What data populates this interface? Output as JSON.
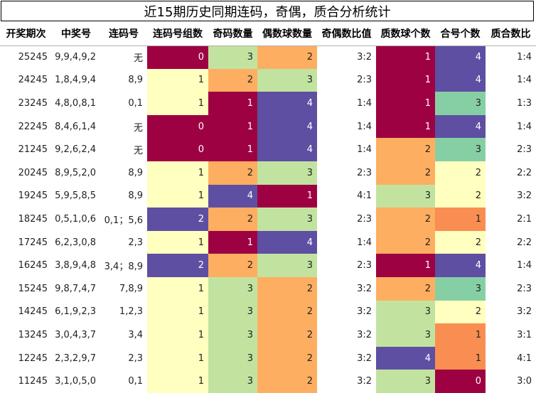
{
  "title": "近15期历史同期连码，奇偶，质合分析统计",
  "headers": [
    "开奖期次",
    "中奖号",
    "连码号",
    "连码号组数",
    "奇码数量",
    "偶数球数量",
    "奇偶数比值",
    "质数球个数",
    "合号个数",
    "质合数比"
  ],
  "rows": [
    {
      "period": "25245",
      "numbers": "9,9,4,9,2",
      "consec": "无",
      "groups": "0",
      "odd": "3",
      "even": "2",
      "oe_ratio": "3:2",
      "prime": "1",
      "composite": "4",
      "pc_ratio": "1:4"
    },
    {
      "period": "24245",
      "numbers": "1,8,4,9,4",
      "consec": "8,9",
      "groups": "1",
      "odd": "2",
      "even": "3",
      "oe_ratio": "2:3",
      "prime": "1",
      "composite": "4",
      "pc_ratio": "1:4"
    },
    {
      "period": "23245",
      "numbers": "4,8,0,8,1",
      "consec": "0,1",
      "groups": "1",
      "odd": "1",
      "even": "4",
      "oe_ratio": "1:4",
      "prime": "1",
      "composite": "3",
      "pc_ratio": "1:3"
    },
    {
      "period": "22245",
      "numbers": "8,4,6,1,4",
      "consec": "无",
      "groups": "0",
      "odd": "1",
      "even": "4",
      "oe_ratio": "1:4",
      "prime": "1",
      "composite": "4",
      "pc_ratio": "1:4"
    },
    {
      "period": "21245",
      "numbers": "9,2,6,2,4",
      "consec": "无",
      "groups": "0",
      "odd": "1",
      "even": "4",
      "oe_ratio": "1:4",
      "prime": "2",
      "composite": "3",
      "pc_ratio": "2:3"
    },
    {
      "period": "20245",
      "numbers": "8,9,5,2,0",
      "consec": "8,9",
      "groups": "1",
      "odd": "2",
      "even": "3",
      "oe_ratio": "2:3",
      "prime": "2",
      "composite": "2",
      "pc_ratio": "2:2"
    },
    {
      "period": "19245",
      "numbers": "5,9,5,8,5",
      "consec": "8,9",
      "groups": "1",
      "odd": "4",
      "even": "1",
      "oe_ratio": "4:1",
      "prime": "3",
      "composite": "2",
      "pc_ratio": "3:2"
    },
    {
      "period": "18245",
      "numbers": "0,5,1,0,6",
      "consec": "0,1；5,6",
      "groups": "2",
      "odd": "2",
      "even": "3",
      "oe_ratio": "2:3",
      "prime": "2",
      "composite": "1",
      "pc_ratio": "2:1"
    },
    {
      "period": "17245",
      "numbers": "6,2,3,0,8",
      "consec": "2,3",
      "groups": "1",
      "odd": "1",
      "even": "4",
      "oe_ratio": "1:4",
      "prime": "2",
      "composite": "2",
      "pc_ratio": "2:2"
    },
    {
      "period": "16245",
      "numbers": "3,8,9,4,8",
      "consec": "3,4；8,9",
      "groups": "2",
      "odd": "2",
      "even": "3",
      "oe_ratio": "2:3",
      "prime": "1",
      "composite": "4",
      "pc_ratio": "1:4"
    },
    {
      "period": "15245",
      "numbers": "9,8,7,4,7",
      "consec": "7,8,9",
      "groups": "1",
      "odd": "3",
      "even": "2",
      "oe_ratio": "3:2",
      "prime": "2",
      "composite": "3",
      "pc_ratio": "2:3"
    },
    {
      "period": "14245",
      "numbers": "6,1,9,2,3",
      "consec": "1,2,3",
      "groups": "1",
      "odd": "3",
      "even": "2",
      "oe_ratio": "3:2",
      "prime": "3",
      "composite": "2",
      "pc_ratio": "3:2"
    },
    {
      "period": "13245",
      "numbers": "3,0,4,3,7",
      "consec": "3,4",
      "groups": "1",
      "odd": "3",
      "even": "2",
      "oe_ratio": "3:2",
      "prime": "3",
      "composite": "1",
      "pc_ratio": "3:1"
    },
    {
      "period": "12245",
      "numbers": "2,3,2,9,7",
      "consec": "2,3",
      "groups": "1",
      "odd": "3",
      "even": "2",
      "oe_ratio": "3:2",
      "prime": "4",
      "composite": "1",
      "pc_ratio": "4:1"
    },
    {
      "period": "11245",
      "numbers": "3,1,0,5,0",
      "consec": "0,1",
      "groups": "1",
      "odd": "3",
      "even": "2",
      "oe_ratio": "3:2",
      "prime": "3",
      "composite": "0",
      "pc_ratio": "3:0"
    }
  ],
  "colors": {
    "groups": {
      "0": "#9e0142",
      "1": "#ffffbf",
      "2": "#5e4fa2"
    },
    "odd": {
      "1": "#9e0142",
      "2": "#fdae61",
      "3": "#c2e3a0",
      "4": "#5e4fa2"
    },
    "even": {
      "1": "#9e0142",
      "2": "#fdae61",
      "3": "#c2e3a0",
      "4": "#5e4fa2"
    },
    "prime": {
      "1": "#9e0142",
      "2": "#fdae61",
      "3": "#c2e3a0",
      "4": "#5e4fa2"
    },
    "composite": {
      "0": "#9e0142",
      "1": "#f98e52",
      "2": "#ffffbf",
      "3": "#86cfa5",
      "4": "#5e4fa2"
    }
  }
}
